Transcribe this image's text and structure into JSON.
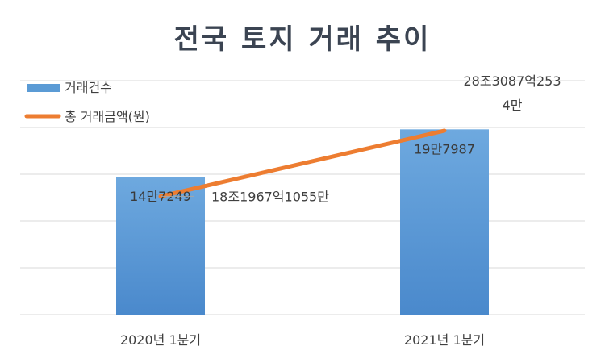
{
  "chart_data": {
    "type": "bar",
    "title": "전국 토지 거래 추이",
    "categories": [
      "2020년 1분기",
      "2021년 1분기"
    ],
    "series": [
      {
        "name": "거래건수",
        "kind": "bar",
        "color": "#5b9bd5",
        "values": [
          147249,
          197987
        ],
        "labels": [
          "14만7249",
          "19만7987"
        ]
      },
      {
        "name": "총 거래금액(원)",
        "kind": "line",
        "color": "#ed7d31",
        "values": [
          18196710550000,
          28308725340000
        ],
        "labels": [
          "18조1967억1055만",
          "28조3087억2534만"
        ]
      }
    ],
    "legend_position": "top-left",
    "grid": true
  }
}
